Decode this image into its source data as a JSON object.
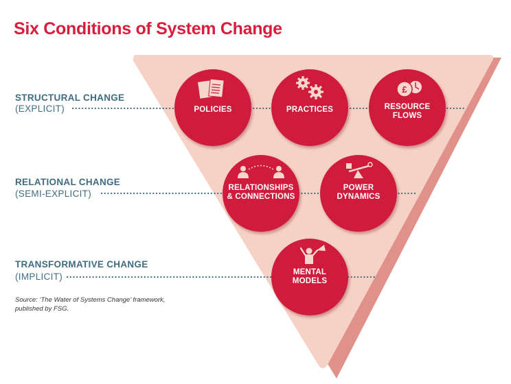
{
  "title": "Six Conditions of System Change",
  "levels": [
    {
      "label": "STRUCTURAL CHANGE",
      "sub": "(EXPLICIT)"
    },
    {
      "label": "RELATIONAL CHANGE",
      "sub": "(SEMI-EXPLICIT)"
    },
    {
      "label": "TRANSFORMATIVE CHANGE",
      "sub": "(IMPLICIT)"
    }
  ],
  "conditions": [
    {
      "line1": "POLICIES",
      "line2": ""
    },
    {
      "line1": "PRACTICES",
      "line2": ""
    },
    {
      "line1": "RESOURCE",
      "line2": "FLOWS"
    },
    {
      "line1": "RELATIONSHIPS",
      "line2": "& CONNECTIONS"
    },
    {
      "line1": "POWER",
      "line2": "DYNAMICS"
    },
    {
      "line1": "MENTAL",
      "line2": "MODELS"
    }
  ],
  "icons": [
    "document-icon",
    "gears-icon",
    "pound-coin-clock-icon",
    "people-connection-icon",
    "balance-scale-icon",
    "megaphone-person-icon"
  ],
  "source": {
    "line1": "Source: ‘The Water of Systems Change’ framework,",
    "line2": "published by FSG."
  },
  "colors": {
    "title": "#d81e3f",
    "label": "#3f6c7f",
    "circle": "#cf1a3e",
    "triangle": "#f6d2c6",
    "triangle_shadow": "#e0918a"
  }
}
